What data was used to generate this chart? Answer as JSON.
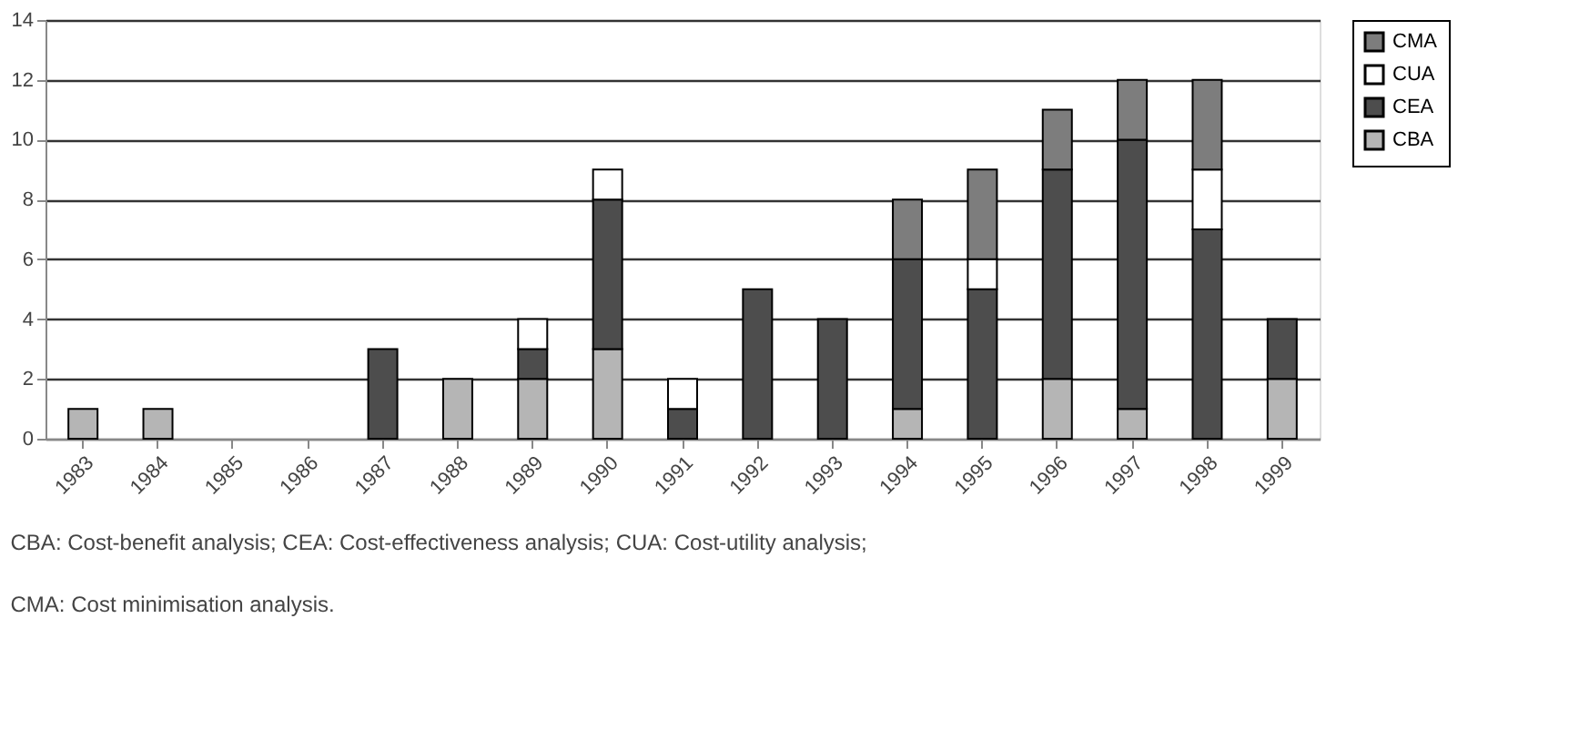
{
  "chart_data": {
    "type": "bar",
    "stacked": true,
    "categories": [
      "1983",
      "1984",
      "1985",
      "1986",
      "1987",
      "1988",
      "1989",
      "1990",
      "1991",
      "1992",
      "1993",
      "1994",
      "1995",
      "1996",
      "1997",
      "1998",
      "1999"
    ],
    "series": [
      {
        "name": "CBA",
        "color": "#b5b5b5",
        "values": [
          1,
          1,
          null,
          null,
          null,
          2,
          2,
          3,
          null,
          null,
          null,
          1,
          null,
          2,
          1,
          null,
          2
        ]
      },
      {
        "name": "CEA",
        "color": "#4d4d4d",
        "values": [
          null,
          null,
          null,
          null,
          3,
          null,
          1,
          5,
          1,
          5,
          4,
          5,
          5,
          7,
          9,
          7,
          2
        ]
      },
      {
        "name": "CUA",
        "color": "#ffffff",
        "values": [
          null,
          null,
          null,
          null,
          null,
          null,
          1,
          1,
          1,
          null,
          null,
          null,
          1,
          null,
          null,
          2,
          null
        ]
      },
      {
        "name": "CMA",
        "color": "#7d7d7d",
        "values": [
          null,
          null,
          null,
          null,
          null,
          null,
          null,
          null,
          null,
          null,
          null,
          2,
          3,
          2,
          2,
          3,
          null
        ]
      }
    ],
    "ylim": [
      0,
      14
    ],
    "yticks": [
      0,
      2,
      4,
      6,
      8,
      10,
      12,
      14
    ],
    "grid": "y",
    "legend": "right",
    "annotations": [
      "CBA: Cost-benefit analysis; CEA: Cost-effectiveness analysis; CUA: Cost-utility analysis;",
      "CMA: Cost minimisation analysis."
    ]
  }
}
